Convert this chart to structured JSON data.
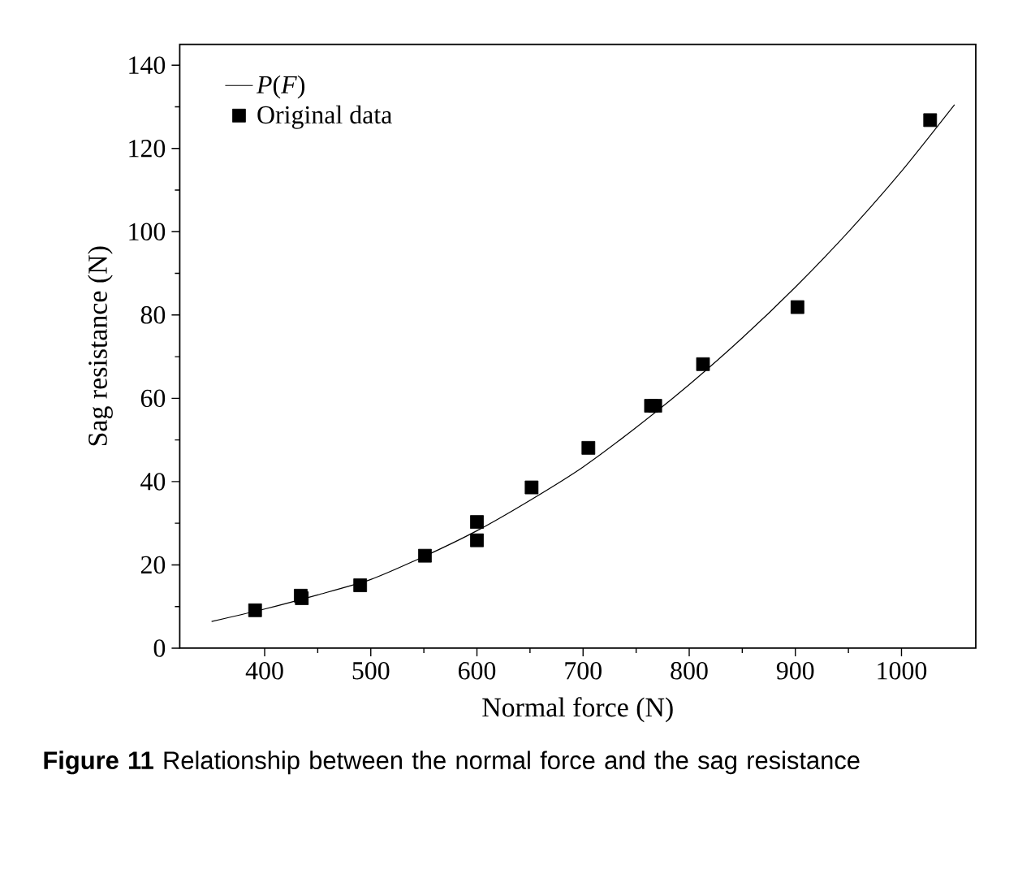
{
  "chart_data": {
    "type": "scatter",
    "xlabel": "Normal force (N)",
    "ylabel": "Sag resistance (N)",
    "xlim": [
      320,
      1070
    ],
    "ylim": [
      0,
      145
    ],
    "xticks": [
      400,
      500,
      600,
      700,
      800,
      900,
      1000
    ],
    "yticks": [
      0,
      20,
      40,
      60,
      80,
      100,
      120,
      140
    ],
    "legend": "top left",
    "grid": false,
    "line_style": "solid",
    "series": [
      {
        "name": "*P*(*F*)",
        "type": "line",
        "color": "#000000",
        "marker": "none",
        "x": [
          350,
          400,
          450,
          500,
          550,
          600,
          650,
          700,
          750,
          800,
          850,
          900,
          950,
          1000,
          1050
        ],
        "values": [
          6.4,
          9.4,
          12.8,
          16.5,
          22,
          28.2,
          35.5,
          43.5,
          53,
          63.3,
          74.5,
          86.7,
          100,
          114.5,
          130.5
        ]
      },
      {
        "name": "Original data",
        "color": "#000000",
        "marker": "square",
        "x": [
          391,
          434,
          435,
          490,
          551,
          600,
          600,
          651.5,
          705,
          764,
          768,
          813,
          902,
          1027
        ],
        "values": [
          9.1,
          12.6,
          12.0,
          15.1,
          22.2,
          30.3,
          25.9,
          38.6,
          48.1,
          58.2,
          58.2,
          68.2,
          81.9,
          126.8
        ]
      }
    ],
    "annotations": [
      "**Figure 11** Relationship between the normal force and the sag resistance"
    ]
  }
}
